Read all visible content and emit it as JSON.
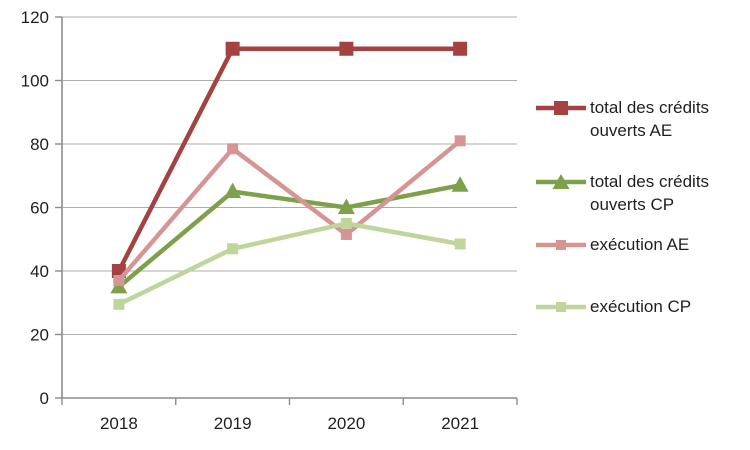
{
  "chart_data": {
    "type": "line",
    "categories": [
      "2018",
      "2019",
      "2020",
      "2021"
    ],
    "series": [
      {
        "name": "total des crédits ouverts AE",
        "color": "#A34240",
        "marker": "square",
        "values": [
          40,
          110,
          110,
          110
        ]
      },
      {
        "name": "total des crédits ouverts CP",
        "color": "#7EA04B",
        "marker": "triangle",
        "values": [
          35,
          65,
          60,
          67
        ]
      },
      {
        "name": "exécution AE",
        "color": "#D59593",
        "marker": "square-small",
        "values": [
          37,
          78.5,
          51.5,
          81
        ]
      },
      {
        "name": "exécution CP",
        "color": "#C0D59C",
        "marker": "square-small",
        "values": [
          29.5,
          47,
          55,
          48.5
        ]
      }
    ],
    "title": "",
    "xlabel": "",
    "ylabel": "",
    "ylim": [
      0,
      120
    ],
    "yticks": [
      0,
      20,
      40,
      60,
      80,
      100,
      120
    ],
    "grid": true,
    "legend_position": "right",
    "colors": {
      "axis": "#8C8C8C",
      "gridline": "#ADADAD",
      "tick_text": "#1f1f1f",
      "background": "#ffffff"
    }
  }
}
